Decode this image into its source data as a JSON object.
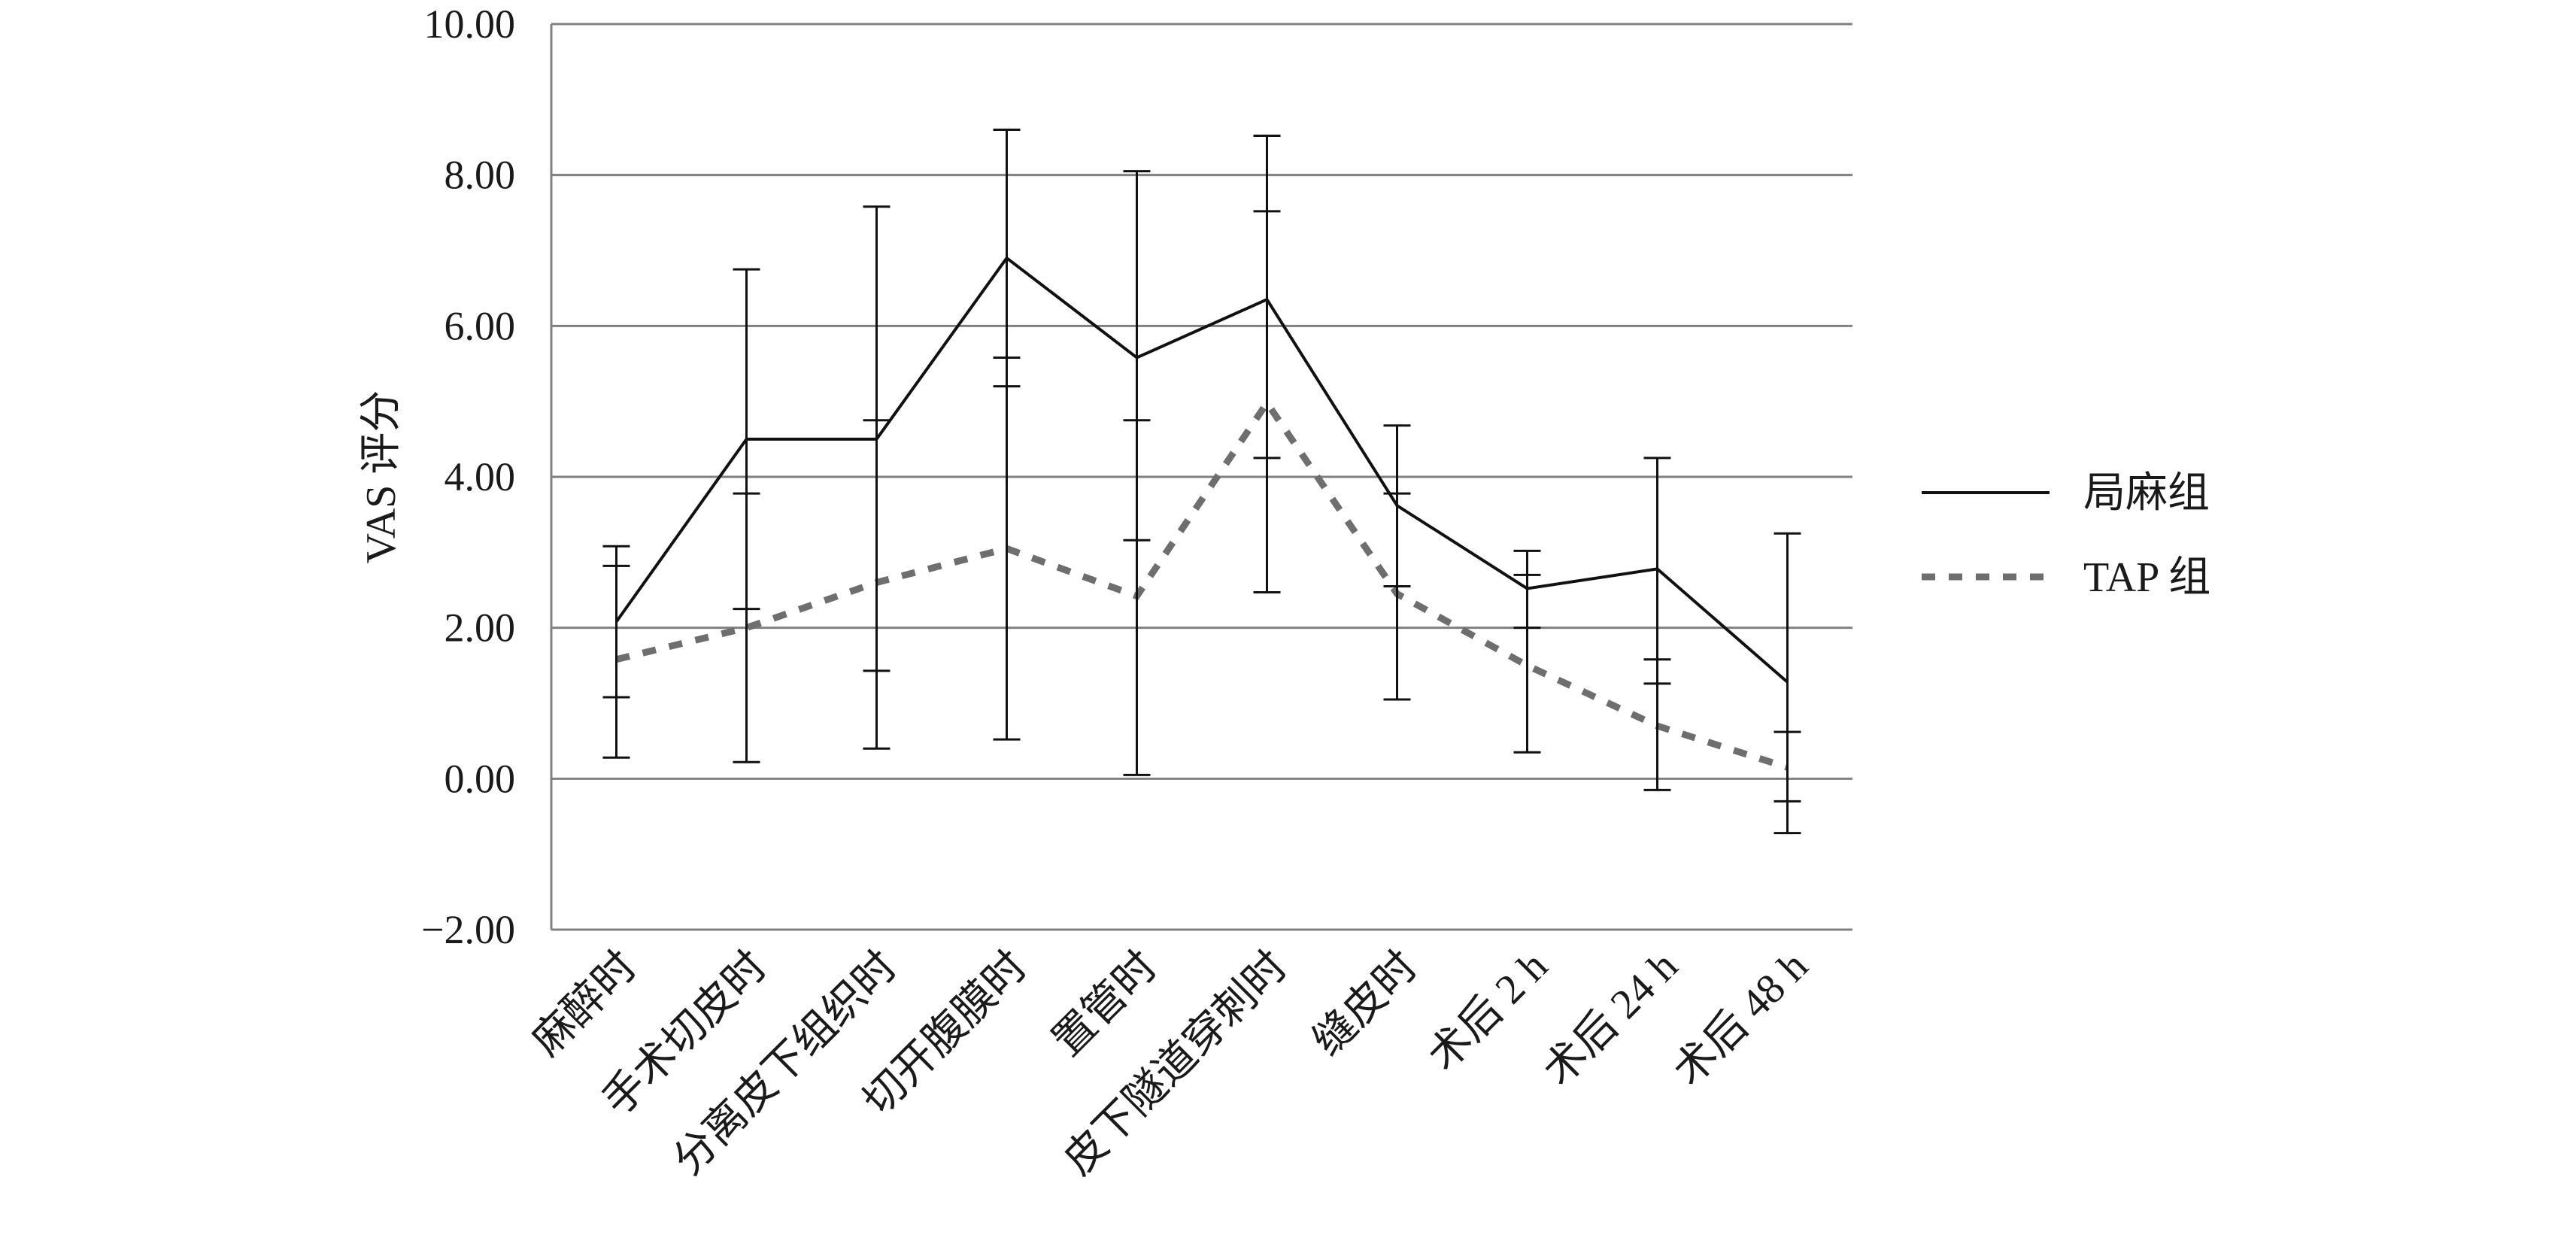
{
  "chart_data": {
    "type": "line",
    "title": "",
    "xlabel": "",
    "ylabel": "VAS 评分",
    "ylim": [
      -2,
      10
    ],
    "yticks": [
      -2,
      0,
      2,
      4,
      6,
      8,
      10
    ],
    "ytick_labels": [
      "−2.00",
      "0.00",
      "2.00",
      "4.00",
      "6.00",
      "8.00",
      "10.00"
    ],
    "grid": "horizontal",
    "legend_position": "right",
    "categories": [
      "麻醉时",
      "手术切皮时",
      "分离皮下组织时",
      "切开腹膜时",
      "置管时",
      "皮下隧道穿刺时",
      "缝皮时",
      "术后 2 h",
      "术后 24 h",
      "术后 48 h"
    ],
    "series": [
      {
        "name": "局麻组",
        "style": "solid",
        "color": "#111111",
        "values": [
          2.08,
          4.5,
          4.5,
          6.9,
          5.58,
          6.35,
          3.62,
          2.52,
          2.78,
          1.28
        ],
        "error_upper": [
          3.08,
          6.75,
          7.58,
          8.6,
          8.05,
          8.52,
          4.68,
          3.02,
          4.25,
          3.25
        ],
        "error_lower": [
          0.28,
          0.22,
          0.4,
          0.52,
          0.05,
          2.47,
          1.05,
          0.35,
          -0.15,
          -0.72
        ]
      },
      {
        "name": "TAP 组",
        "style": "dashed",
        "color": "#6e6e6e",
        "values": [
          1.58,
          2.0,
          2.6,
          3.05,
          2.42,
          4.98,
          2.45,
          1.5,
          0.7,
          0.15
        ],
        "error_upper": [
          2.82,
          3.78,
          4.75,
          5.58,
          4.75,
          7.52,
          3.78,
          2.7,
          1.58,
          0.62
        ],
        "error_lower": [
          1.08,
          2.25,
          1.43,
          5.2,
          3.16,
          4.25,
          2.55,
          2.0,
          1.26,
          -0.3
        ]
      }
    ]
  }
}
